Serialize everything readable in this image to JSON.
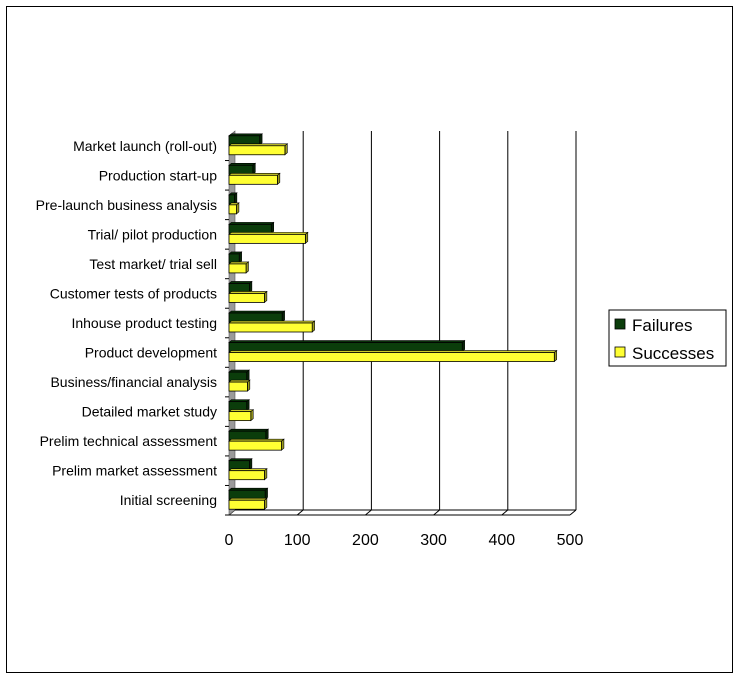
{
  "chart_data": {
    "type": "bar",
    "orientation": "horizontal",
    "title": "",
    "xlabel": "",
    "ylabel": "",
    "xlim": [
      0,
      500
    ],
    "xticks": [
      "0",
      "100",
      "200",
      "300",
      "400",
      "500"
    ],
    "grid": "vertical",
    "legend_position": "right",
    "categories": [
      "Initial screening",
      "Prelim market assessment",
      "Prelim technical assessment",
      "Detailed market study",
      "Business/financial analysis",
      "Product development",
      "Inhouse product testing",
      "Customer tests of products",
      "Test market/ trial sell",
      "Trial/ pilot production",
      "Pre-launch business analysis",
      "Production start-up",
      "Market launch (roll-out)"
    ],
    "series": [
      {
        "name": "Failures",
        "color": "#0b3d0b",
        "values": [
          53,
          30,
          54,
          26,
          26,
          342,
          78,
          30,
          15,
          62,
          8,
          35,
          45
        ]
      },
      {
        "name": "Successes",
        "color": "#ffff33",
        "values": [
          52,
          52,
          77,
          32,
          27,
          477,
          122,
          52,
          25,
          112,
          11,
          71,
          82
        ]
      }
    ]
  }
}
